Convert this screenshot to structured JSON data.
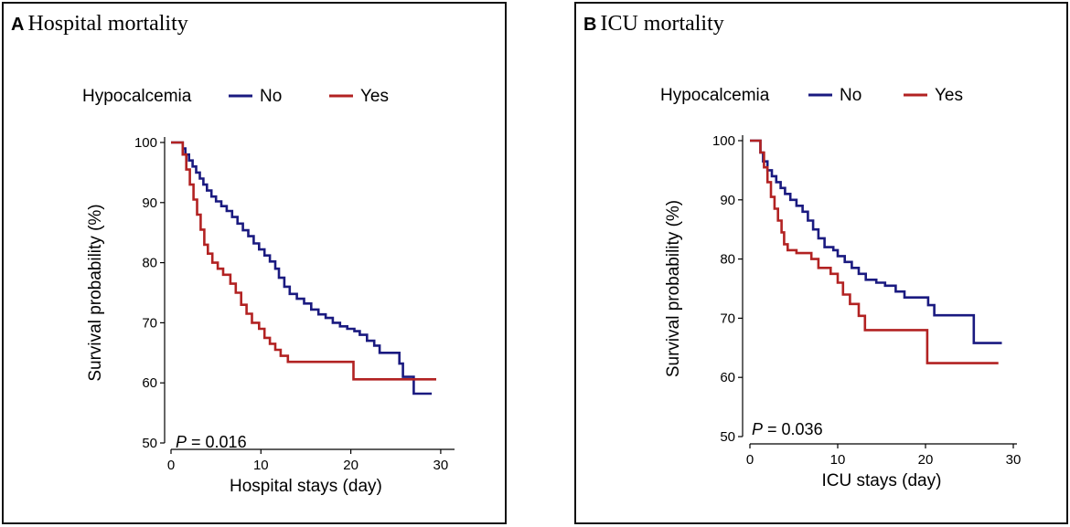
{
  "chart_data": [
    {
      "type": "line",
      "panel_letter": "A",
      "title": "Hospital mortality",
      "legend_title": "Hypocalcemia",
      "xlabel": "Hospital stays (day)",
      "ylabel": "Survival probability (%)",
      "xlim": [
        0,
        30
      ],
      "ylim": [
        50,
        100
      ],
      "xticks": [
        0,
        10,
        20,
        30
      ],
      "yticks": [
        50,
        60,
        70,
        80,
        90,
        100
      ],
      "pvalue_label": "P",
      "pvalue_text": " = 0.016",
      "colors": {
        "No": "#1a1a80",
        "Yes": "#b22222"
      },
      "series": [
        {
          "name": "No",
          "points": [
            [
              0,
              100
            ],
            [
              1.3,
              100
            ],
            [
              1.3,
              99
            ],
            [
              1.6,
              98
            ],
            [
              2.0,
              97
            ],
            [
              2.4,
              96
            ],
            [
              2.8,
              95
            ],
            [
              3.2,
              94
            ],
            [
              3.6,
              93
            ],
            [
              4.0,
              92
            ],
            [
              4.5,
              91
            ],
            [
              5.0,
              90.2
            ],
            [
              5.6,
              89.4
            ],
            [
              6.2,
              88.6
            ],
            [
              6.8,
              87.6
            ],
            [
              7.4,
              86.5
            ],
            [
              8.0,
              85.4
            ],
            [
              8.6,
              84.4
            ],
            [
              9.2,
              83.2
            ],
            [
              9.8,
              82.2
            ],
            [
              10.4,
              81.2
            ],
            [
              11.0,
              80.2
            ],
            [
              11.6,
              79
            ],
            [
              12.0,
              77.5
            ],
            [
              12.6,
              76
            ],
            [
              13.2,
              74.8
            ],
            [
              14.0,
              74
            ],
            [
              14.8,
              73.2
            ],
            [
              15.6,
              72.2
            ],
            [
              16.4,
              71.4
            ],
            [
              17.2,
              70.8
            ],
            [
              18.0,
              70
            ],
            [
              18.8,
              69.4
            ],
            [
              19.6,
              69
            ],
            [
              20.4,
              68.6
            ],
            [
              21.0,
              68
            ],
            [
              21.8,
              67
            ],
            [
              22.6,
              66.2
            ],
            [
              23.2,
              65
            ],
            [
              25.4,
              65
            ],
            [
              25.4,
              63.2
            ],
            [
              25.8,
              61
            ],
            [
              27.0,
              61
            ],
            [
              27.0,
              58.2
            ],
            [
              29.0,
              58.2
            ]
          ]
        },
        {
          "name": "Yes",
          "points": [
            [
              0,
              100
            ],
            [
              1.3,
              100
            ],
            [
              1.3,
              98
            ],
            [
              1.7,
              95.5
            ],
            [
              2.1,
              93
            ],
            [
              2.5,
              90.5
            ],
            [
              2.9,
              88
            ],
            [
              3.3,
              85.5
            ],
            [
              3.7,
              83
            ],
            [
              4.1,
              81.5
            ],
            [
              4.6,
              80
            ],
            [
              5.2,
              79
            ],
            [
              5.8,
              78
            ],
            [
              6.6,
              76.5
            ],
            [
              7.2,
              75
            ],
            [
              7.8,
              73
            ],
            [
              8.4,
              71.5
            ],
            [
              9.0,
              70
            ],
            [
              9.8,
              69
            ],
            [
              10.4,
              67.5
            ],
            [
              11.0,
              66.5
            ],
            [
              11.6,
              65.5
            ],
            [
              12.2,
              64.5
            ],
            [
              13.0,
              63.5
            ],
            [
              20.3,
              63.5
            ],
            [
              20.3,
              60.6
            ],
            [
              29.5,
              60.6
            ]
          ]
        }
      ]
    },
    {
      "type": "line",
      "panel_letter": "B",
      "title": "ICU mortality",
      "legend_title": "Hypocalcemia",
      "xlabel": "ICU stays (day)",
      "ylabel": "Survival probability (%)",
      "xlim": [
        0,
        30
      ],
      "ylim": [
        50,
        100
      ],
      "xticks": [
        0,
        10,
        20,
        30
      ],
      "yticks": [
        50,
        60,
        70,
        80,
        90,
        100
      ],
      "pvalue_label": "P",
      "pvalue_text": " = 0.036",
      "colors": {
        "No": "#1a1a80",
        "Yes": "#b22222"
      },
      "series": [
        {
          "name": "No",
          "points": [
            [
              0,
              100
            ],
            [
              1.0,
              100
            ],
            [
              1.2,
              98
            ],
            [
              1.5,
              96.5
            ],
            [
              2.0,
              95
            ],
            [
              2.5,
              94
            ],
            [
              3.0,
              93
            ],
            [
              3.5,
              92
            ],
            [
              4.0,
              91
            ],
            [
              4.6,
              90
            ],
            [
              5.3,
              89
            ],
            [
              6.0,
              88
            ],
            [
              6.6,
              86.5
            ],
            [
              7.2,
              85
            ],
            [
              7.8,
              83.5
            ],
            [
              8.5,
              82
            ],
            [
              9.5,
              81.5
            ],
            [
              10.0,
              80.5
            ],
            [
              10.8,
              79.5
            ],
            [
              11.6,
              78.5
            ],
            [
              12.4,
              77.5
            ],
            [
              13.2,
              76.5
            ],
            [
              14.4,
              76
            ],
            [
              15.4,
              75.5
            ],
            [
              16.6,
              74.5
            ],
            [
              17.6,
              73.5
            ],
            [
              20.3,
              73.5
            ],
            [
              20.3,
              72.2
            ],
            [
              21.0,
              70.5
            ],
            [
              25.5,
              70.5
            ],
            [
              25.5,
              65.8
            ],
            [
              28.7,
              65.8
            ]
          ]
        },
        {
          "name": "Yes",
          "points": [
            [
              0,
              100
            ],
            [
              1.2,
              100
            ],
            [
              1.2,
              98
            ],
            [
              1.6,
              95.5
            ],
            [
              2.0,
              93
            ],
            [
              2.4,
              90.5
            ],
            [
              2.8,
              88.5
            ],
            [
              3.2,
              86.5
            ],
            [
              3.6,
              84.5
            ],
            [
              3.9,
              82.5
            ],
            [
              4.3,
              81.5
            ],
            [
              5.3,
              81
            ],
            [
              7.0,
              80
            ],
            [
              7.8,
              78.5
            ],
            [
              9.2,
              77.5
            ],
            [
              10.0,
              76
            ],
            [
              10.6,
              74
            ],
            [
              11.4,
              72.4
            ],
            [
              12.4,
              70.4
            ],
            [
              13.1,
              68
            ],
            [
              20.2,
              68
            ],
            [
              20.2,
              62.4
            ],
            [
              28.3,
              62.4
            ]
          ]
        }
      ]
    }
  ]
}
